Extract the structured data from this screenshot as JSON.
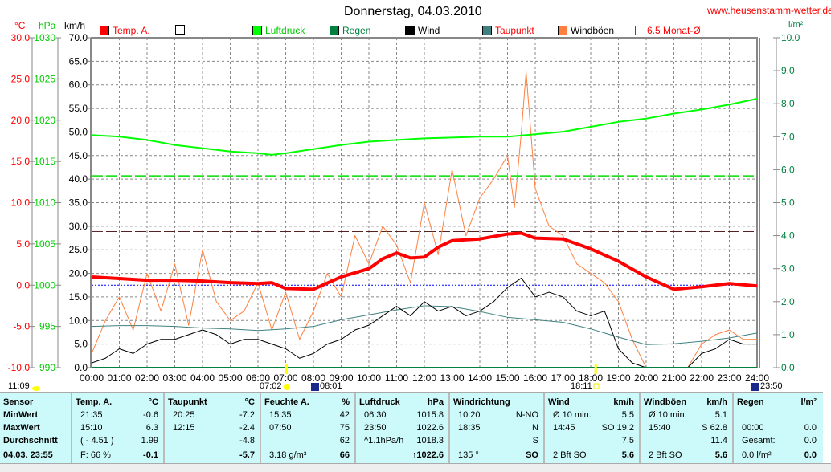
{
  "header": {
    "title": "Donnerstag, 04.03.2010",
    "site": "www.heusenstamm-wetter.de e"
  },
  "axes": {
    "temp_unit": "°C",
    "hpa_unit": "hPa",
    "kmh_unit": "km/h",
    "rain_unit": "l/m²"
  },
  "legend": [
    {
      "label": "Temp. A.",
      "color": "#ff0000",
      "text_color": "#ff0000"
    },
    {
      "label": "",
      "color": "#ffffff",
      "text_color": "#000000"
    },
    {
      "label": "Luftdruck",
      "color": "#00ff00",
      "text_color": "#00cc00"
    },
    {
      "label": "Regen",
      "color": "#008040",
      "text_color": "#008040"
    },
    {
      "label": "Wind",
      "color": "#000000",
      "text_color": "#000000"
    },
    {
      "label": "Taupunkt",
      "color": "#408080",
      "text_color": "#ff0000"
    },
    {
      "label": "Windböen",
      "color": "#ff8040",
      "text_color": "#000000"
    },
    {
      "label": "6.5 Monat-Ø",
      "color": "#ffffff",
      "text_color": "#ff0000"
    }
  ],
  "markers": {
    "left": "11:09",
    "sunrise": "07:02",
    "moon1": "08:01",
    "sunset": "18:11",
    "moon2": "23:50"
  },
  "chart_data": {
    "type": "line",
    "title": "Donnerstag, 04.03.2010",
    "x_ticks": [
      "00:00",
      "01:00",
      "02:00",
      "03:00",
      "04:00",
      "05:00",
      "06:00",
      "07:00",
      "08:00",
      "09:00",
      "10:00",
      "11:00",
      "12:00",
      "13:00",
      "14:00",
      "15:00",
      "16:00",
      "17:00",
      "18:00",
      "19:00",
      "20:00",
      "21:00",
      "22:00",
      "23:00",
      "24:00"
    ],
    "xlim": [
      0,
      24
    ],
    "y_axes": {
      "kmh": {
        "ylim": [
          0,
          70
        ],
        "ticks": [
          "0.0",
          "5.0",
          "10.0",
          "15.0",
          "20.0",
          "25.0",
          "30.0",
          "35.0",
          "40.0",
          "45.0",
          "50.0",
          "55.0",
          "60.0",
          "65.0",
          "70.0"
        ]
      },
      "temp": {
        "ylim": [
          -10,
          30
        ],
        "ticks": [
          "-10.0",
          "-5.0",
          "0.0",
          "5.0",
          "10.0",
          "15.0",
          "20.0",
          "25.0",
          "30.0"
        ]
      },
      "hpa": {
        "ylim": [
          990,
          1030
        ],
        "ticks": [
          "990",
          "995",
          "1000",
          "1005",
          "1010",
          "1015",
          "1020",
          "1025",
          "1030"
        ]
      },
      "rain": {
        "ylim": [
          0,
          10
        ],
        "ticks": [
          "0.0",
          "1.0",
          "2.0",
          "3.0",
          "4.0",
          "5.0",
          "6.0",
          "7.0",
          "8.0",
          "9.0",
          "10.0"
        ]
      }
    },
    "grid": true,
    "reference_lines": {
      "monthly_avg_temp": 6.5,
      "normal_pressure_hpa": 1013.25,
      "zero_temp": 0
    },
    "series": [
      {
        "name": "Temp. A.",
        "axis": "temp",
        "color": "#ff0000",
        "x": [
          0,
          1,
          2,
          3,
          4,
          5,
          6,
          6.5,
          7,
          8,
          9,
          10,
          10.5,
          11,
          11.5,
          12,
          12.5,
          13,
          14,
          15,
          15.5,
          16,
          17,
          18,
          19,
          20,
          21,
          22,
          23,
          24
        ],
        "y": [
          1.0,
          0.8,
          0.6,
          0.6,
          0.5,
          0.3,
          0.2,
          0.3,
          -0.4,
          -0.5,
          1.0,
          2.0,
          3.2,
          3.9,
          3.3,
          3.4,
          4.6,
          5.4,
          5.6,
          6.2,
          6.3,
          5.7,
          5.6,
          4.4,
          2.9,
          1.0,
          -0.5,
          -0.2,
          0.2,
          -0.1
        ]
      },
      {
        "name": "Luftdruck",
        "axis": "hpa",
        "color": "#00ff00",
        "x": [
          0,
          1,
          2,
          3,
          4,
          5,
          6,
          6.5,
          7,
          8,
          9,
          10,
          11,
          12,
          13,
          14,
          15,
          16,
          17,
          18,
          19,
          20,
          21,
          22,
          23,
          24
        ],
        "y": [
          1018.2,
          1018.0,
          1017.6,
          1017.0,
          1016.6,
          1016.2,
          1016.0,
          1015.8,
          1016.0,
          1016.5,
          1017.0,
          1017.4,
          1017.6,
          1017.8,
          1017.9,
          1018.0,
          1018.0,
          1018.3,
          1018.6,
          1019.2,
          1019.8,
          1020.2,
          1020.8,
          1021.3,
          1021.9,
          1022.6
        ]
      },
      {
        "name": "Taupunkt",
        "axis": "temp",
        "color": "#408080",
        "x": [
          0,
          1,
          2,
          3,
          4,
          5,
          6,
          7,
          8,
          9,
          10,
          11,
          12,
          13,
          14,
          15,
          16,
          17,
          18,
          19,
          20,
          21,
          22,
          23,
          24
        ],
        "y": [
          -5.0,
          -4.9,
          -4.9,
          -5.0,
          -5.2,
          -5.3,
          -5.5,
          -5.3,
          -5.0,
          -4.2,
          -3.6,
          -3.0,
          -2.5,
          -2.6,
          -3.2,
          -3.9,
          -4.2,
          -4.5,
          -5.3,
          -6.3,
          -7.2,
          -7.1,
          -6.8,
          -6.4,
          -5.8
        ]
      },
      {
        "name": "Wind",
        "axis": "kmh",
        "color": "#000000",
        "x": [
          0,
          0.5,
          1,
          1.5,
          2,
          2.5,
          3,
          3.5,
          4,
          4.5,
          5,
          5.5,
          6,
          6.5,
          7,
          7.5,
          8,
          8.5,
          9,
          9.5,
          10,
          10.5,
          11,
          11.5,
          12,
          12.5,
          13,
          13.5,
          14,
          14.5,
          15,
          15.5,
          16,
          16.5,
          17,
          17.5,
          18,
          18.5,
          19,
          19.5,
          20,
          21,
          21.5,
          22,
          22.5,
          23,
          23.5,
          24
        ],
        "y": [
          1,
          2,
          4,
          3,
          5,
          6,
          6,
          7,
          8,
          7,
          5,
          6,
          6,
          5,
          4,
          2,
          3,
          5,
          6,
          8,
          9,
          11,
          13,
          11,
          14,
          12,
          13,
          11,
          12,
          14,
          17,
          19,
          15,
          16,
          15,
          12,
          11,
          12,
          4,
          1,
          0,
          0,
          0,
          3,
          4,
          6,
          5,
          5
        ]
      },
      {
        "name": "Windböen",
        "axis": "kmh",
        "color": "#ff8040",
        "x": [
          0,
          0.5,
          1,
          1.5,
          2,
          2.5,
          3,
          3.5,
          4,
          4.5,
          5,
          5.5,
          6,
          6.5,
          7,
          7.5,
          8,
          8.5,
          9,
          9.5,
          10,
          10.5,
          11,
          11.5,
          12,
          12.5,
          13,
          13.5,
          14,
          14.5,
          15,
          15.25,
          15.5,
          15.67,
          16,
          16.5,
          17,
          17.5,
          18,
          18.5,
          19,
          19.5,
          20,
          20.5,
          21,
          21.5,
          22,
          22.5,
          23,
          23.5,
          24
        ],
        "y": [
          3,
          10,
          15,
          8,
          20,
          12,
          22,
          9,
          25,
          14,
          10,
          12,
          18,
          8,
          16,
          6,
          12,
          20,
          15,
          28,
          22,
          30,
          26,
          18,
          35,
          24,
          42,
          28,
          36,
          40,
          45,
          34,
          50,
          62.8,
          38,
          30,
          28,
          22,
          20,
          18,
          14,
          6,
          0,
          0,
          0,
          0,
          5,
          7,
          8,
          6,
          6
        ]
      }
    ]
  },
  "table": {
    "sensor": {
      "header": "Sensor",
      "rows": [
        "MinWert",
        "MaxWert",
        "Durchschnitt",
        "04.03. 23:55"
      ]
    },
    "sections": [
      {
        "label": "Temp. A.",
        "unit": "°C",
        "rows": [
          [
            "21:35",
            "-0.6"
          ],
          [
            "15:10",
            "6.3"
          ],
          [
            "( - 4.51 )",
            "1.99"
          ],
          [
            "F: 66 %",
            "-0.1"
          ]
        ]
      },
      {
        "label": "Taupunkt",
        "unit": "°C",
        "rows": [
          [
            "20:25",
            "-7.2"
          ],
          [
            "12:15",
            "-2.4"
          ],
          [
            "",
            "-4.8"
          ],
          [
            "",
            "-5.7"
          ]
        ]
      },
      {
        "label": "Feuchte A.",
        "unit": "%",
        "rows": [
          [
            "15:35",
            "42"
          ],
          [
            "07:50",
            "75"
          ],
          [
            "",
            "62"
          ],
          [
            "3.18 g/m³",
            "66"
          ]
        ]
      },
      {
        "label": "Luftdruck",
        "unit": "hPa",
        "rows": [
          [
            "06:30",
            "1015.8"
          ],
          [
            "23:50",
            "1022.6"
          ],
          [
            "^1.1hPa/h",
            "1018.3"
          ],
          [
            "",
            "↑1022.6"
          ]
        ]
      },
      {
        "label": "Windrichtung",
        "unit": "",
        "rows": [
          [
            "10:20",
            "N-NO"
          ],
          [
            "18:35",
            "N"
          ],
          [
            "",
            "S"
          ],
          [
            "135 °",
            "SO"
          ]
        ]
      },
      {
        "label": "Wind",
        "unit": "km/h",
        "rows": [
          [
            "Ø 10 min.",
            "5.5"
          ],
          [
            "14:45",
            "SO 19.2"
          ],
          [
            "",
            "7.5"
          ],
          [
            "2 Bft SO",
            "5.6"
          ]
        ]
      },
      {
        "label": "Windböen",
        "unit": "km/h",
        "rows": [
          [
            "Ø 10 min.",
            "5.1"
          ],
          [
            "15:40",
            "S 62.8"
          ],
          [
            "",
            "11.4"
          ],
          [
            "2 Bft SO",
            "5.6"
          ]
        ]
      },
      {
        "label": "Regen",
        "unit": "l/m²",
        "rows": [
          [
            "",
            ""
          ],
          [
            "00:00",
            "0.0"
          ],
          [
            "Gesamt:",
            "0.0"
          ],
          [
            "0.0 l/m²",
            "0.0"
          ]
        ]
      }
    ]
  }
}
